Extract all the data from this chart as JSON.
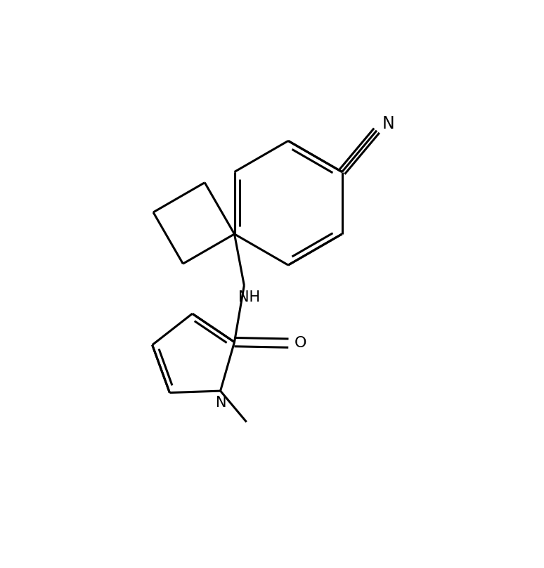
{
  "background_color": "#ffffff",
  "line_color": "#000000",
  "line_width": 2.2,
  "font_size": 15,
  "figsize": [
    7.74,
    8.08
  ],
  "dpi": 100,
  "xlim": [
    0.0,
    10.0
  ],
  "ylim": [
    0.0,
    10.0
  ]
}
